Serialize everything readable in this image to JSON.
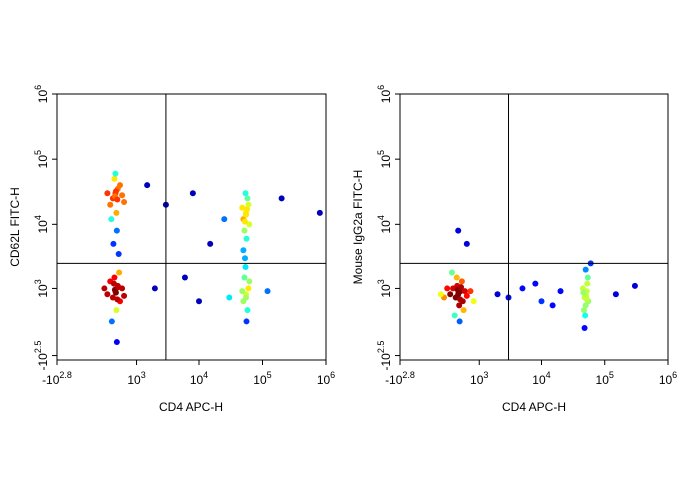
{
  "chart_data": [
    {
      "type": "scatter",
      "scale": "biexponential",
      "x_label": "CD4 APC-H",
      "y_label": "CD62L FITC-H",
      "xlim": [
        -631,
        1000000
      ],
      "ylim": [
        -400,
        1000000
      ],
      "xticks": [
        {
          "value": -631,
          "label": "-10",
          "power": "2.8"
        },
        {
          "value": 1000,
          "label": "10",
          "power": "3"
        },
        {
          "value": 10000,
          "label": "10",
          "power": "4"
        },
        {
          "value": 100000,
          "label": "10",
          "power": "5"
        },
        {
          "value": 1000000,
          "label": "10",
          "power": "6"
        }
      ],
      "yticks": [
        {
          "value": -316,
          "label": "-10",
          "power": "2.5"
        },
        {
          "value": 1000,
          "label": "10",
          "power": "3"
        },
        {
          "value": 10000,
          "label": "10",
          "power": "4"
        },
        {
          "value": 100000,
          "label": "10",
          "power": "5"
        },
        {
          "value": 1000000,
          "label": "10",
          "power": "6"
        }
      ],
      "gate": {
        "x": 3000,
        "y": 2500
      },
      "x": [
        400,
        350,
        450,
        300,
        500,
        420,
        380,
        250,
        550,
        430,
        360,
        470,
        320,
        400,
        600,
        410,
        390,
        440,
        400,
        350,
        450,
        300,
        500,
        420,
        380,
        250,
        550,
        330,
        480,
        600,
        200,
        430,
        370,
        410,
        390,
        440,
        460,
        55000,
        50000,
        60000,
        52000,
        58000,
        48000,
        62000,
        54000,
        56000,
        50000,
        55000,
        57000,
        53000,
        55000,
        50000,
        60000,
        52000,
        58000,
        48000,
        62000,
        54000,
        56000,
        53000,
        55000,
        3000,
        8000,
        15000,
        200000,
        2000,
        10000,
        120000,
        800000,
        1500,
        25000,
        6000,
        30000
      ],
      "values": [
        30000,
        25000,
        35000,
        20000,
        40000,
        15000,
        50000,
        30000,
        28000,
        8000,
        5000,
        3500,
        12000,
        60000,
        22000,
        32000,
        27000,
        24000,
        900,
        700,
        1100,
        1300,
        600,
        400,
        1500,
        800,
        1000,
        200,
        1800,
        750,
        1000,
        -100,
        1200,
        850,
        950,
        650,
        1050,
        15000,
        12000,
        20000,
        8000,
        25000,
        18000,
        10000,
        30000,
        6000,
        4000,
        14000,
        17000,
        11000,
        800,
        600,
        1000,
        1500,
        400,
        900,
        1300,
        2200,
        200,
        3000,
        700,
        20000,
        30000,
        5000,
        25000,
        1000,
        600,
        900,
        15000,
        40000,
        12000,
        1500,
        700
      ]
    },
    {
      "type": "scatter",
      "scale": "biexponential",
      "x_label": "CD4 APC-H",
      "y_label": "Mouse IgG2a FITC-H",
      "xlim": [
        -631,
        1000000
      ],
      "ylim": [
        -400,
        1000000
      ],
      "xticks": [
        {
          "value": -631,
          "label": "-10",
          "power": "2.8"
        },
        {
          "value": 1000,
          "label": "10",
          "power": "3"
        },
        {
          "value": 10000,
          "label": "10",
          "power": "4"
        },
        {
          "value": 100000,
          "label": "10",
          "power": "5"
        },
        {
          "value": 1000000,
          "label": "10",
          "power": "6"
        }
      ],
      "yticks": [
        {
          "value": -316,
          "label": "-10",
          "power": "2.5"
        },
        {
          "value": 1000,
          "label": "10",
          "power": "3"
        },
        {
          "value": 10000,
          "label": "10",
          "power": "4"
        },
        {
          "value": 100000,
          "label": "10",
          "power": "5"
        },
        {
          "value": 1000000,
          "label": "10",
          "power": "6"
        }
      ],
      "gate": {
        "x": 3000,
        "y": 2500
      },
      "x": [
        400,
        350,
        450,
        300,
        500,
        420,
        380,
        250,
        550,
        330,
        480,
        600,
        200,
        430,
        370,
        410,
        390,
        440,
        460,
        150,
        700,
        800,
        100,
        280,
        520,
        50000,
        48000,
        52000,
        55000,
        45000,
        50000,
        53000,
        47000,
        51000,
        49000,
        54000,
        46000,
        50000,
        52000,
        48000,
        2000,
        5000,
        10000,
        20000,
        3000,
        8000,
        150000,
        300000,
        15000,
        600,
        400,
        60000
      ],
      "values": [
        800,
        700,
        900,
        1000,
        600,
        500,
        1100,
        800,
        900,
        300,
        1300,
        750,
        1000,
        200,
        1500,
        850,
        950,
        650,
        1050,
        700,
        900,
        600,
        800,
        1800,
        400,
        800,
        700,
        900,
        600,
        1000,
        500,
        1200,
        400,
        750,
        300,
        1500,
        850,
        2000,
        650,
        100,
        800,
        1000,
        600,
        900,
        700,
        1200,
        800,
        1100,
        500,
        5000,
        8000,
        2500
      ]
    }
  ]
}
